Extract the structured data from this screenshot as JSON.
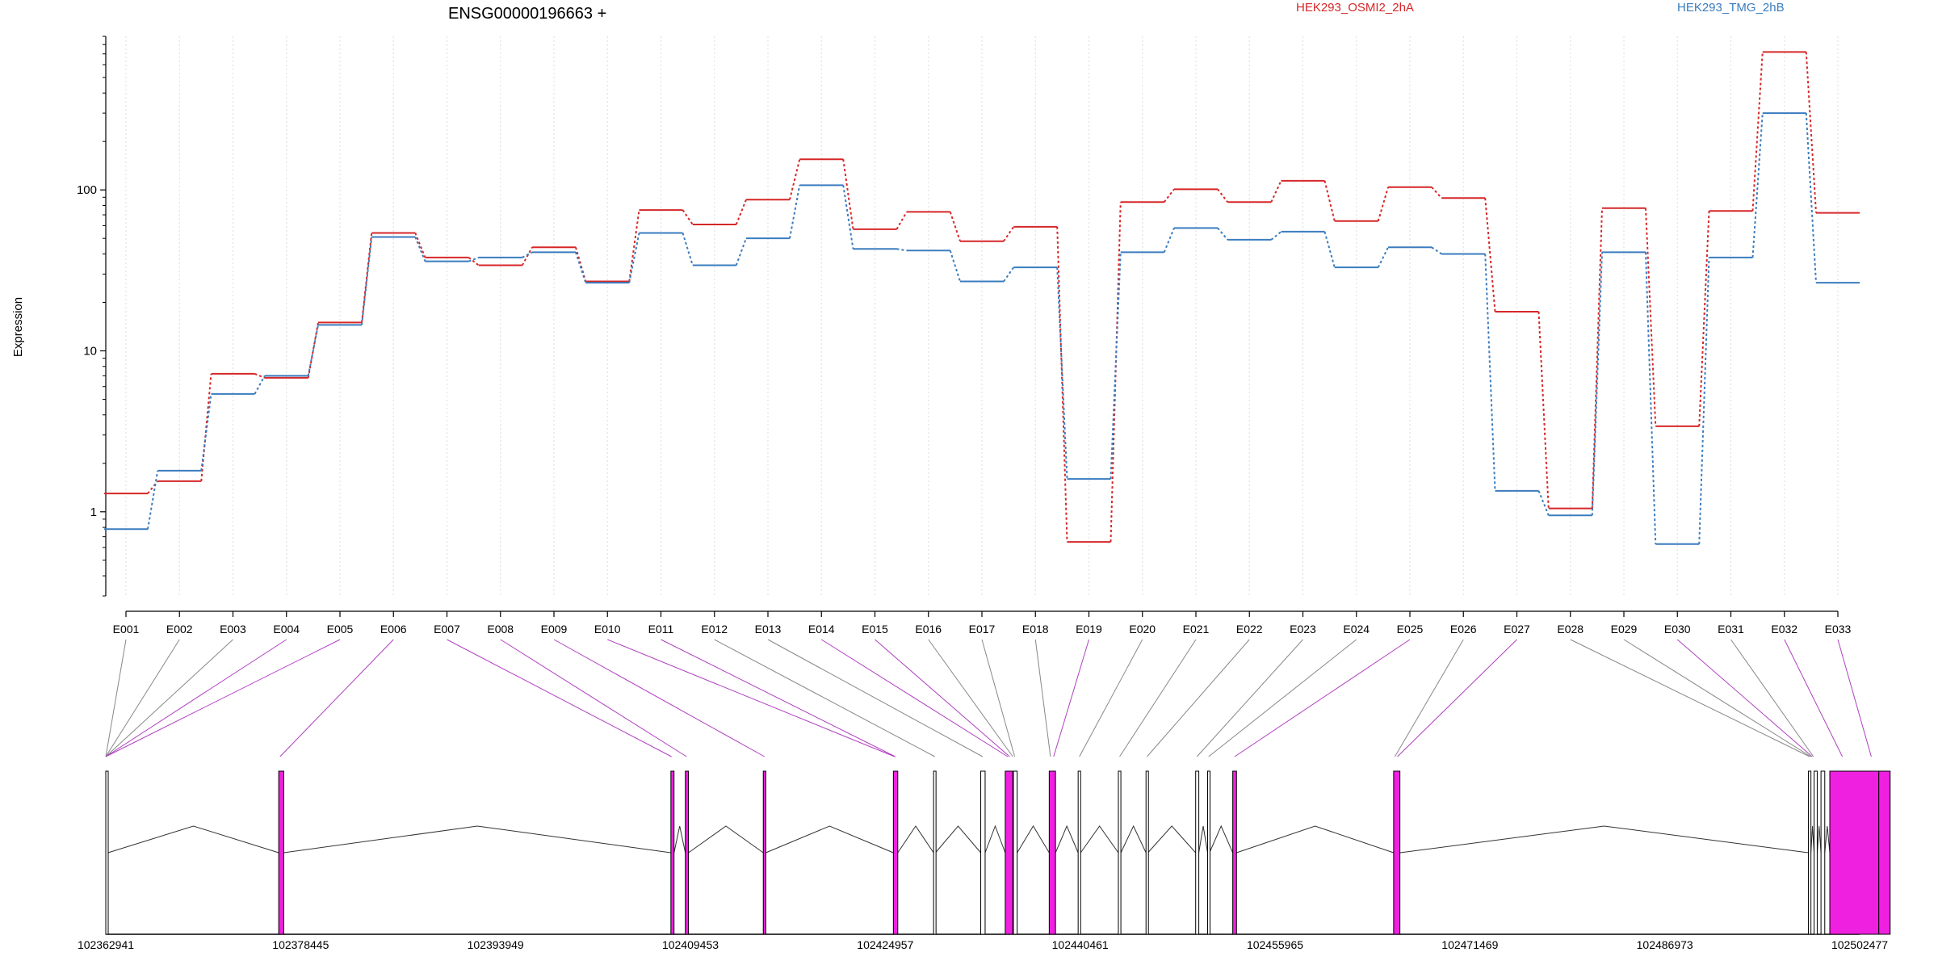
{
  "chart_data": {
    "type": "line",
    "title": "ENSG00000196663 +",
    "ylabel": "Expression",
    "yscale": "log",
    "ylim": [
      0.3,
      900
    ],
    "yticks": [
      1,
      10,
      100
    ],
    "ytick_labels": [
      "1",
      "10",
      "100"
    ],
    "grid": "vertical dotted",
    "legend_position": "top",
    "categories": [
      "E001",
      "E002",
      "E003",
      "E004",
      "E005",
      "E006",
      "E007",
      "E008",
      "E009",
      "E010",
      "E011",
      "E012",
      "E013",
      "E014",
      "E015",
      "E016",
      "E017",
      "E018",
      "E019",
      "E020",
      "E021",
      "E022",
      "E023",
      "E024",
      "E025",
      "E026",
      "E027",
      "E028",
      "E029",
      "E030",
      "E031",
      "E032",
      "E033"
    ],
    "series": [
      {
        "name": "HEK293_OSMI2_2hA",
        "color": "#d62728",
        "values": [
          1.3,
          1.55,
          7.2,
          6.8,
          15,
          54,
          38,
          34,
          44,
          27,
          75,
          61,
          87,
          155,
          57,
          73,
          48,
          59,
          0.65,
          84,
          101,
          84,
          114,
          64,
          104,
          89,
          17.5,
          1.05,
          77,
          3.4,
          74,
          720,
          72
        ]
      },
      {
        "name": "HEK293_TMG_2hB",
        "color": "#3a7cbf",
        "values": [
          0.78,
          1.8,
          5.4,
          7.0,
          14.5,
          51,
          36,
          38,
          41,
          26.5,
          54,
          34,
          50,
          107,
          43,
          42,
          27,
          33,
          1.6,
          41,
          58,
          49,
          55,
          33,
          44,
          40,
          1.35,
          0.95,
          41,
          0.63,
          38,
          300,
          26.5
        ]
      }
    ]
  },
  "gene_model": {
    "coordinate_ticks": [
      "102362941",
      "102378445",
      "102393949",
      "102409453",
      "102424957",
      "102440461",
      "102455965",
      "102471469",
      "102486973",
      "102502477"
    ],
    "exon_color": "#f020e0",
    "exons": [
      {
        "start": 102362941,
        "end": 102363120,
        "highlight": false
      },
      {
        "start": 102376700,
        "end": 102377100,
        "highlight": true
      },
      {
        "start": 102407900,
        "end": 102408150,
        "highlight": true
      },
      {
        "start": 102409050,
        "end": 102409300,
        "highlight": true
      },
      {
        "start": 102415250,
        "end": 102415450,
        "highlight": true
      },
      {
        "start": 102425600,
        "end": 102425950,
        "highlight": true
      },
      {
        "start": 102428800,
        "end": 102428950,
        "highlight": false
      },
      {
        "start": 102432550,
        "end": 102432900,
        "highlight": false
      },
      {
        "start": 102434500,
        "end": 102435100,
        "highlight": true
      },
      {
        "start": 102435150,
        "end": 102435450,
        "highlight": false
      },
      {
        "start": 102438000,
        "end": 102438500,
        "highlight": true
      },
      {
        "start": 102440300,
        "end": 102440500,
        "highlight": false
      },
      {
        "start": 102443500,
        "end": 102443700,
        "highlight": false
      },
      {
        "start": 102445700,
        "end": 102445850,
        "highlight": false
      },
      {
        "start": 102449650,
        "end": 102449900,
        "highlight": false
      },
      {
        "start": 102450600,
        "end": 102450750,
        "highlight": false
      },
      {
        "start": 102452600,
        "end": 102452900,
        "highlight": true
      },
      {
        "start": 102465400,
        "end": 102465900,
        "highlight": true
      },
      {
        "start": 102498400,
        "end": 102498600,
        "highlight": false
      },
      {
        "start": 102498850,
        "end": 102499100,
        "highlight": false
      },
      {
        "start": 102499400,
        "end": 102499700,
        "highlight": false
      },
      {
        "start": 102500100,
        "end": 102504000,
        "highlight": true
      },
      {
        "start": 102504000,
        "end": 102504900,
        "highlight": true
      }
    ],
    "exon_map": [
      {
        "exon": "E001",
        "position": 102362941,
        "highlight": false
      },
      {
        "exon": "E002",
        "position": 102362941,
        "highlight": false
      },
      {
        "exon": "E003",
        "position": 102362941,
        "highlight": false
      },
      {
        "exon": "E004",
        "position": 102362941,
        "highlight": true
      },
      {
        "exon": "E005",
        "position": 102362941,
        "highlight": true
      },
      {
        "exon": "E006",
        "position": 102376800,
        "highlight": true
      },
      {
        "exon": "E007",
        "position": 102407950,
        "highlight": true
      },
      {
        "exon": "E008",
        "position": 102409150,
        "highlight": true
      },
      {
        "exon": "E009",
        "position": 102415350,
        "highlight": true
      },
      {
        "exon": "E010",
        "position": 102425700,
        "highlight": true
      },
      {
        "exon": "E011",
        "position": 102425750,
        "highlight": true
      },
      {
        "exon": "E012",
        "position": 102428900,
        "highlight": false
      },
      {
        "exon": "E013",
        "position": 102432700,
        "highlight": false
      },
      {
        "exon": "E014",
        "position": 102434700,
        "highlight": true
      },
      {
        "exon": "E015",
        "position": 102434850,
        "highlight": true
      },
      {
        "exon": "E016",
        "position": 102435100,
        "highlight": false
      },
      {
        "exon": "E017",
        "position": 102435250,
        "highlight": false
      },
      {
        "exon": "E018",
        "position": 102438100,
        "highlight": false
      },
      {
        "exon": "E019",
        "position": 102438350,
        "highlight": true
      },
      {
        "exon": "E020",
        "position": 102440400,
        "highlight": false
      },
      {
        "exon": "E021",
        "position": 102443600,
        "highlight": false
      },
      {
        "exon": "E022",
        "position": 102445780,
        "highlight": false
      },
      {
        "exon": "E023",
        "position": 102449750,
        "highlight": false
      },
      {
        "exon": "E024",
        "position": 102450680,
        "highlight": false
      },
      {
        "exon": "E025",
        "position": 102452750,
        "highlight": true
      },
      {
        "exon": "E026",
        "position": 102465500,
        "highlight": false
      },
      {
        "exon": "E027",
        "position": 102465700,
        "highlight": true
      },
      {
        "exon": "E028",
        "position": 102498500,
        "highlight": false
      },
      {
        "exon": "E029",
        "position": 102498600,
        "highlight": false
      },
      {
        "exon": "E030",
        "position": 102498700,
        "highlight": true
      },
      {
        "exon": "E031",
        "position": 102498800,
        "highlight": false
      },
      {
        "exon": "E032",
        "position": 102501100,
        "highlight": true
      },
      {
        "exon": "E033",
        "position": 102503400,
        "highlight": true
      }
    ]
  }
}
